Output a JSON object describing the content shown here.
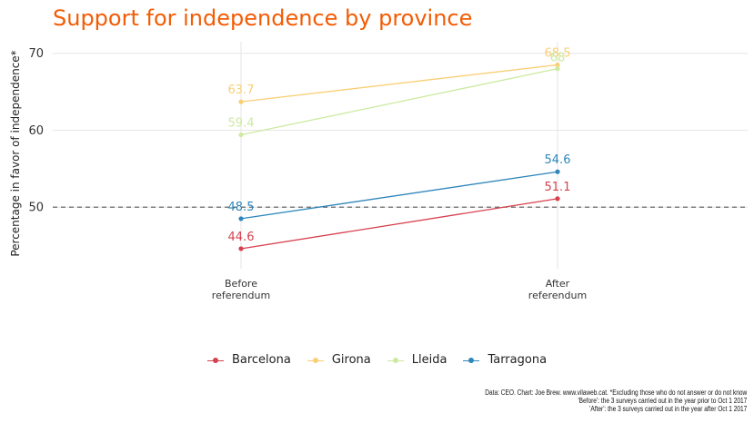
{
  "chart_data": {
    "type": "line",
    "title": "Support for independence by province",
    "ylabel": "Percentage in favor of independence*",
    "xlabel": "",
    "categories": [
      "Before\nreferendum",
      "After\nreferendum"
    ],
    "ylim": [
      42,
      71.5
    ],
    "yticks": [
      50,
      60,
      70
    ],
    "reference_line": 50,
    "grid": true,
    "legend_position": "bottom",
    "series": [
      {
        "name": "Barcelona",
        "color": "#d7404e",
        "values": [
          44.6,
          51.1
        ],
        "labels": [
          "44.6",
          "51.1"
        ],
        "label_y_offset": [
          -13,
          -13
        ]
      },
      {
        "name": "Girona",
        "color": "#f9cf75",
        "values": [
          63.7,
          68.5
        ],
        "labels": [
          "63.7",
          "68.5"
        ],
        "label_y_offset": [
          -13,
          -13
        ]
      },
      {
        "name": "Lleida",
        "color": "#cdeaa0",
        "values": [
          59.4,
          68
        ],
        "labels": [
          "59.4",
          "68"
        ],
        "label_y_offset": [
          -13,
          -12
        ]
      },
      {
        "name": "Tarragona",
        "color": "#2e86bb",
        "values": [
          48.5,
          54.6
        ],
        "labels": [
          "48.5",
          "54.6"
        ],
        "label_y_offset": [
          -13,
          -13
        ]
      }
    ]
  },
  "caption": [
    "Data: CEO. Chart: Joe Brew. www.vilaweb.cat. *Excluding those who do not answer or do not know",
    "'Before': the 3 surveys carried out in the year prior to Oct 1 2017",
    "'After': the 3 surveys carried out in the year after Oct 1 2017"
  ]
}
